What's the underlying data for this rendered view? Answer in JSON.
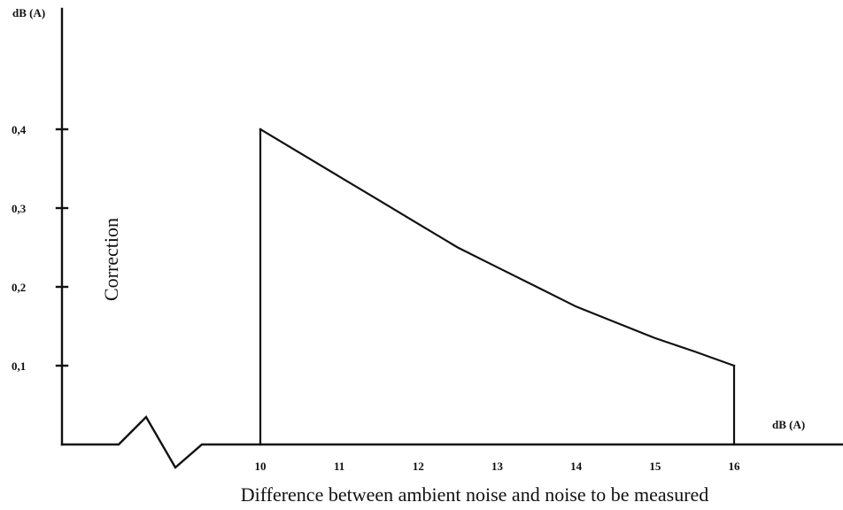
{
  "chart_data": {
    "type": "line",
    "title": "",
    "xlabel": "Difference between ambient noise and noise to be measured",
    "ylabel": "Correction",
    "x_unit_label": "dB (A)",
    "y_unit_label": "dB (A)",
    "x_ticks": [
      10,
      11,
      12,
      13,
      14,
      15,
      16
    ],
    "x_tick_labels": [
      "10",
      "11",
      "12",
      "13",
      "14",
      "15",
      "16"
    ],
    "y_ticks": [
      0.1,
      0.2,
      0.3,
      0.4
    ],
    "y_tick_labels": [
      "0,1",
      "0,2",
      "0,3",
      "0,4"
    ],
    "xlim": [
      10,
      16
    ],
    "ylim": [
      0,
      0.4
    ],
    "axis_break": true,
    "grid": false,
    "series": [
      {
        "x": [
          10,
          10.5,
          11,
          11.5,
          12,
          12.5,
          13,
          13.5,
          14,
          14.5,
          15,
          15.5,
          16
        ],
        "y": [
          0.4,
          0.37,
          0.34,
          0.31,
          0.28,
          0.25,
          0.225,
          0.2,
          0.175,
          0.155,
          0.135,
          0.118,
          0.1
        ]
      }
    ],
    "vertical_drops": [
      10,
      16
    ]
  },
  "colors": {
    "line": "#111111",
    "background": "#ffffff"
  }
}
